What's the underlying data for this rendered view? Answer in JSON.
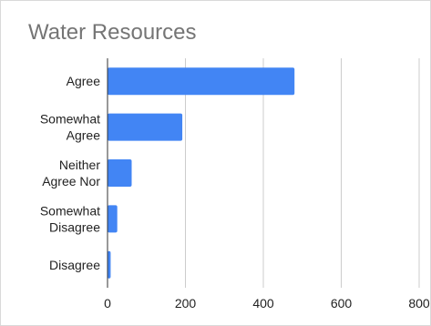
{
  "chart_data": {
    "type": "bar",
    "orientation": "horizontal",
    "title": "Water Resources",
    "categories": [
      [
        "Agree"
      ],
      [
        "Somewhat",
        "Agree"
      ],
      [
        "Neither",
        "Agree Nor"
      ],
      [
        "Somewhat",
        "Disagree"
      ],
      [
        "Disagree"
      ]
    ],
    "values": [
      480,
      192,
      62,
      25,
      8
    ],
    "xlim": [
      0,
      800
    ],
    "xticks": [
      0,
      200,
      400,
      600,
      800
    ],
    "xtick_labels": [
      "0",
      "200",
      "400",
      "600",
      "800"
    ],
    "grid": true,
    "legend": "none",
    "bar_color": "#4285f4",
    "grid_color": "#cccccc",
    "axis_color": "#333333"
  }
}
